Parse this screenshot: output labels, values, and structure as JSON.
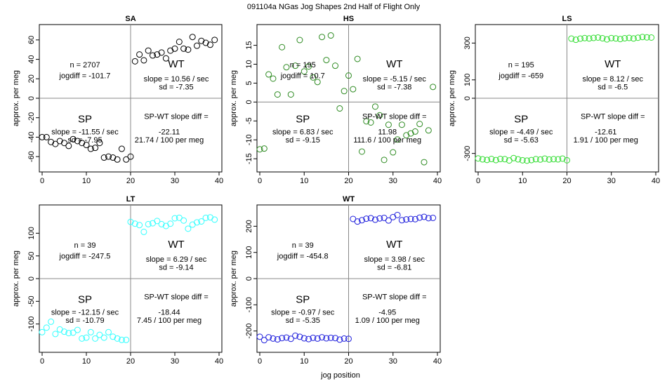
{
  "figure": {
    "title": "091104a   NGas Jog Shapes 2nd Half of Flight Only",
    "xlabel": "jog position"
  },
  "chart_data": [
    {
      "type": "scatter",
      "title": "SA",
      "ylabel": "approx. per meg",
      "xlim": [
        0,
        40
      ],
      "ylim": [
        -70,
        70
      ],
      "xticks": [
        0,
        10,
        20,
        30,
        40
      ],
      "yticks": [
        -60,
        -40,
        -20,
        0,
        20,
        40,
        60
      ],
      "color": "#000000",
      "x": [
        0,
        1,
        2,
        3,
        4,
        5,
        6,
        7,
        8,
        9,
        10,
        11,
        12,
        13,
        14,
        15,
        16,
        17,
        18,
        19,
        20,
        21,
        22,
        23,
        24,
        25,
        26,
        27,
        28,
        29,
        30,
        31,
        32,
        33,
        34,
        35,
        36,
        37,
        38,
        39
      ],
      "y": [
        -40,
        -40,
        -45,
        -47,
        -44,
        -46,
        -49,
        -42,
        -44,
        -46,
        -48,
        -52,
        -51,
        -46,
        -61,
        -60,
        -61,
        -63,
        -52,
        -63,
        -60,
        38,
        45,
        39,
        49,
        44,
        45,
        47,
        41,
        49,
        51,
        58,
        51,
        50,
        63,
        54,
        59,
        57,
        55,
        60
      ],
      "text": {
        "n": "n = 2707",
        "jogdiff": "jogdiff = -101.7",
        "wt_label": "WT",
        "wt_slope": "slope = 10.56 / sec",
        "wt_sd": "sd = -7.35",
        "sp_label": "SP",
        "sp_slope": "slope = -11.55 / sec",
        "sp_sd": "sd = -7.95",
        "diff_label": "SP-WT slope diff =",
        "diff_value": "-22.11",
        "diff_per": "21.74 / 100 per meg"
      }
    },
    {
      "type": "scatter",
      "title": "HS",
      "ylabel": "approx. per meg",
      "xlim": [
        0,
        40
      ],
      "ylim": [
        -17,
        19
      ],
      "xticks": [
        0,
        10,
        20,
        30,
        40
      ],
      "yticks": [
        -15,
        -10,
        -5,
        0,
        5,
        10,
        15
      ],
      "color": "#2e8b22",
      "x": [
        0,
        1,
        2,
        3,
        4,
        5,
        6,
        7,
        8,
        9,
        10,
        11,
        12,
        13,
        14,
        15,
        16,
        17,
        18,
        19,
        20,
        21,
        22,
        23,
        24,
        25,
        26,
        27,
        28,
        29,
        30,
        31,
        32,
        33,
        34,
        35,
        36,
        37,
        38,
        39
      ],
      "y": [
        -12.5,
        -12.3,
        7.3,
        6.2,
        2,
        14.5,
        9.2,
        2,
        9.6,
        16.4,
        8.1,
        9.4,
        6.5,
        5.3,
        17.2,
        11.1,
        17.6,
        9.6,
        -1.7,
        2.9,
        7,
        3.4,
        11.4,
        -13.1,
        -5.1,
        -5.4,
        -1.2,
        -3.5,
        -15.3,
        -6,
        -13.3,
        -9.9,
        -6,
        -8.8,
        -8.3,
        -7.8,
        -5.8,
        -15.9,
        -7.5,
        4
      ],
      "text": {
        "n": "n = 195",
        "jogdiff": "jogdiff = 10.7",
        "wt_label": "WT",
        "wt_slope": "slope = -5.15 / sec",
        "wt_sd": "sd = -7.38",
        "sp_label": "SP",
        "sp_slope": "slope = 6.83 / sec",
        "sp_sd": "sd = -9.15",
        "diff_label": "SP-WT slope diff =",
        "diff_value": "11.98",
        "diff_per": "111.6 / 100 per meg"
      }
    },
    {
      "type": "scatter",
      "title": "LS",
      "ylabel": "approx. per meg",
      "xlim": [
        0,
        40
      ],
      "ylim": [
        -370,
        370
      ],
      "xticks": [
        0,
        10,
        20,
        30,
        40
      ],
      "yticks": [
        -300,
        0,
        100,
        300
      ],
      "color": "#33dd33",
      "x": [
        0,
        1,
        2,
        3,
        4,
        5,
        6,
        7,
        8,
        9,
        10,
        11,
        12,
        13,
        14,
        15,
        16,
        17,
        18,
        19,
        20,
        21,
        22,
        23,
        24,
        25,
        26,
        27,
        28,
        29,
        30,
        31,
        32,
        33,
        34,
        35,
        36,
        37,
        38,
        39
      ],
      "y": [
        -327,
        -332,
        -335,
        -330,
        -336,
        -330,
        -331,
        -338,
        -325,
        -332,
        -337,
        -339,
        -336,
        -331,
        -333,
        -328,
        -333,
        -331,
        -332,
        -328,
        -337,
        324,
        318,
        324,
        327,
        325,
        328,
        330,
        326,
        320,
        327,
        325,
        322,
        326,
        328,
        325,
        329,
        333,
        331,
        330
      ],
      "text": {
        "n": "n = 195",
        "jogdiff": "jogdiff = -659",
        "wt_label": "WT",
        "wt_slope": "slope = 8.12 / sec",
        "wt_sd": "sd = -6.5",
        "sp_label": "SP",
        "sp_slope": "slope = -4.49 / sec",
        "sp_sd": "sd = -5.63",
        "diff_label": "SP-WT slope diff =",
        "diff_value": "-12.61",
        "diff_per": "1.91 / 100 per meg"
      }
    },
    {
      "type": "scatter",
      "title": "LT",
      "ylabel": "approx. per meg",
      "xlim": [
        0,
        40
      ],
      "ylim": [
        -150,
        150
      ],
      "xticks": [
        0,
        10,
        20,
        30,
        40
      ],
      "yticks": [
        -100,
        -50,
        0,
        50,
        100
      ],
      "color": "#33ffff",
      "x": [
        0,
        1,
        2,
        3,
        4,
        5,
        6,
        7,
        8,
        9,
        10,
        11,
        12,
        13,
        14,
        15,
        16,
        17,
        18,
        19,
        20,
        21,
        22,
        23,
        24,
        25,
        26,
        27,
        28,
        29,
        30,
        31,
        32,
        33,
        34,
        35,
        36,
        37,
        38,
        39
      ],
      "y": [
        -118,
        -108,
        -95,
        -122,
        -112,
        -117,
        -120,
        -119,
        -113,
        -132,
        -130,
        -118,
        -132,
        -124,
        -130,
        -118,
        -128,
        -132,
        -135,
        -135,
        125,
        121,
        118,
        103,
        120,
        122,
        127,
        120,
        116,
        121,
        133,
        134,
        128,
        110,
        119,
        124,
        126,
        134,
        135,
        130
      ],
      "text": {
        "n": "n = 39",
        "jogdiff": "jogdiff = -247.5",
        "wt_label": "WT",
        "wt_slope": "slope = 6.29 / sec",
        "wt_sd": "sd = -9.14",
        "sp_label": "SP",
        "sp_slope": "slope = -12.15 / sec",
        "sp_sd": "sd = -10.79",
        "diff_label": "SP-WT slope diff =",
        "diff_value": "-18.44",
        "diff_per": "7.45 / 100 per meg"
      }
    },
    {
      "type": "scatter",
      "title": "WT",
      "ylabel": "approx. per meg",
      "xlim": [
        0,
        40
      ],
      "ylim": [
        -260,
        260
      ],
      "xticks": [
        0,
        10,
        20,
        30,
        40
      ],
      "yticks": [
        -200,
        -100,
        0,
        100,
        200
      ],
      "color": "#2222dd",
      "x": [
        0,
        1,
        2,
        3,
        4,
        5,
        6,
        7,
        8,
        9,
        10,
        11,
        12,
        13,
        14,
        15,
        16,
        17,
        18,
        19,
        20,
        21,
        22,
        23,
        24,
        25,
        26,
        27,
        28,
        29,
        30,
        31,
        32,
        33,
        34,
        35,
        36,
        37,
        38,
        39
      ],
      "y": [
        -222,
        -235,
        -224,
        -229,
        -232,
        -227,
        -225,
        -230,
        -218,
        -222,
        -228,
        -231,
        -226,
        -229,
        -224,
        -228,
        -226,
        -227,
        -233,
        -229,
        -230,
        228,
        218,
        223,
        229,
        231,
        225,
        230,
        232,
        222,
        235,
        243,
        223,
        226,
        228,
        227,
        233,
        236,
        231,
        232
      ],
      "text": {
        "n": "n = 39",
        "jogdiff": "jogdiff = -454.8",
        "wt_label": "WT",
        "wt_slope": "slope = 3.98 / sec",
        "wt_sd": "sd = -6.81",
        "sp_label": "SP",
        "sp_slope": "slope = -0.97 / sec",
        "sp_sd": "sd = -5.35",
        "diff_label": "SP-WT slope diff =",
        "diff_value": "-4.95",
        "diff_per": "1.09 / 100 per meg"
      }
    }
  ]
}
